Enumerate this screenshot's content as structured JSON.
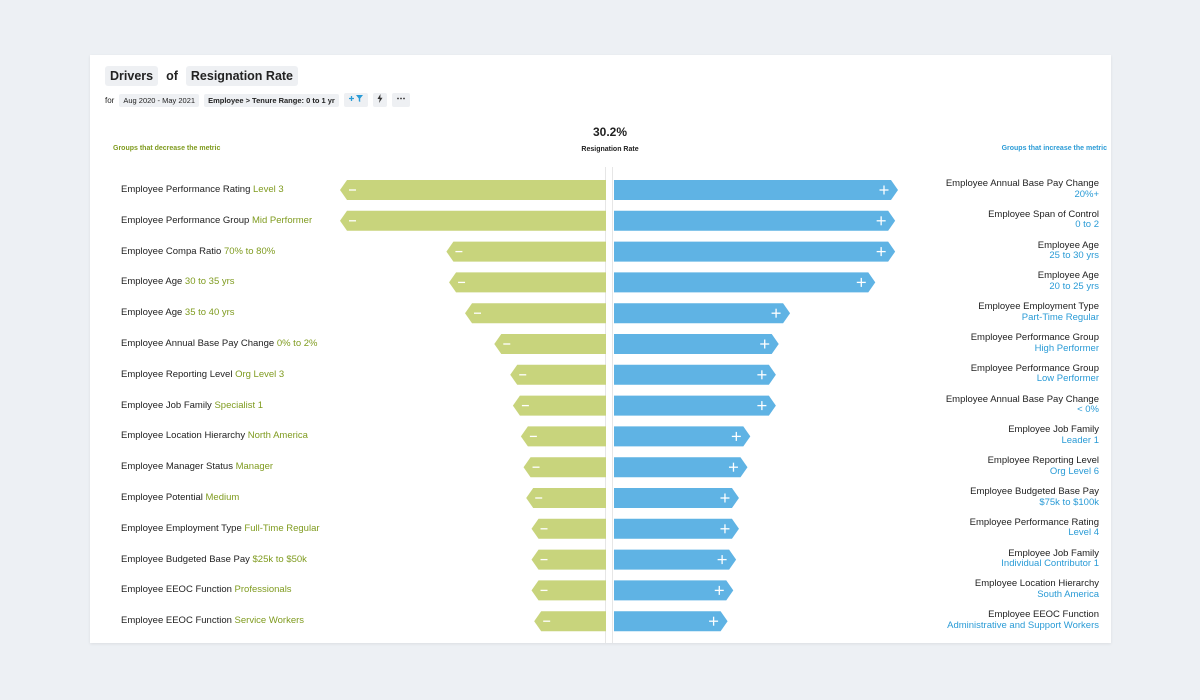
{
  "header": {
    "prefix": "Drivers",
    "connector": "of",
    "metric": "Resignation Rate"
  },
  "filters": {
    "for_label": "for",
    "date_range": "Aug 2020 - May 2021",
    "tenure_filter": "Employee > Tenure Range: 0 to 1 yr",
    "add_filter_icon": "filter-add-icon",
    "insight_icon": "lightning-icon",
    "more_icon": "more-icon"
  },
  "colors": {
    "decrease": "#c8d47c",
    "increase": "#5fb3e4",
    "decrease_text": "#7f9b1f",
    "increase_text": "#2a9bd6"
  },
  "chart_data": {
    "type": "bar",
    "title": "Drivers of Resignation Rate",
    "overall_value": "30.2%",
    "overall_label": "Resignation Rate",
    "left_heading": "Groups that decrease the metric",
    "right_heading": "Groups that increase the metric",
    "scale_max": 100,
    "decrease": [
      {
        "category": "Employee Performance Rating",
        "group": "Level 3",
        "magnitude": 100
      },
      {
        "category": "Employee Performance Group",
        "group": "Mid Performer",
        "magnitude": 100
      },
      {
        "category": "Employee Compa Ratio",
        "group": "70% to 80%",
        "magnitude": 60
      },
      {
        "category": "Employee Age",
        "group": "30 to 35 yrs",
        "magnitude": 59
      },
      {
        "category": "Employee Age",
        "group": "35 to 40 yrs",
        "magnitude": 53
      },
      {
        "category": "Employee Annual Base Pay Change",
        "group": "0% to 2%",
        "magnitude": 42
      },
      {
        "category": "Employee Reporting Level",
        "group": "Org Level 3",
        "magnitude": 36
      },
      {
        "category": "Employee Job Family",
        "group": "Specialist 1",
        "magnitude": 35
      },
      {
        "category": "Employee Location Hierarchy",
        "group": "North America",
        "magnitude": 32
      },
      {
        "category": "Employee Manager Status",
        "group": "Manager",
        "magnitude": 31
      },
      {
        "category": "Employee Potential",
        "group": "Medium",
        "magnitude": 30
      },
      {
        "category": "Employee Employment Type",
        "group": "Full-Time Regular",
        "magnitude": 28
      },
      {
        "category": "Employee Budgeted Base Pay",
        "group": "$25k to $50k",
        "magnitude": 28
      },
      {
        "category": "Employee EEOC Function",
        "group": "Professionals",
        "magnitude": 28
      },
      {
        "category": "Employee EEOC Function",
        "group": "Service Workers",
        "magnitude": 27
      }
    ],
    "increase": [
      {
        "category": "Employee Annual Base Pay Change",
        "group": "20%+",
        "magnitude": 100
      },
      {
        "category": "Employee Span of Control",
        "group": "0 to 2",
        "magnitude": 99
      },
      {
        "category": "Employee Age",
        "group": "25 to 30 yrs",
        "magnitude": 99
      },
      {
        "category": "Employee Age",
        "group": "20 to 25 yrs",
        "magnitude": 92
      },
      {
        "category": "Employee Employment Type",
        "group": "Part-Time Regular",
        "magnitude": 62
      },
      {
        "category": "Employee Performance Group",
        "group": "High Performer",
        "magnitude": 58
      },
      {
        "category": "Employee Performance Group",
        "group": "Low Performer",
        "magnitude": 57
      },
      {
        "category": "Employee Annual Base Pay Change",
        "group": "< 0%",
        "magnitude": 57
      },
      {
        "category": "Employee Job Family",
        "group": "Leader 1",
        "magnitude": 48
      },
      {
        "category": "Employee Reporting Level",
        "group": "Org Level 6",
        "magnitude": 47
      },
      {
        "category": "Employee Budgeted Base Pay",
        "group": "$75k to $100k",
        "magnitude": 44
      },
      {
        "category": "Employee Performance Rating",
        "group": "Level 4",
        "magnitude": 44
      },
      {
        "category": "Employee Job Family",
        "group": "Individual Contributor 1",
        "magnitude": 43
      },
      {
        "category": "Employee Location Hierarchy",
        "group": "South America",
        "magnitude": 42
      },
      {
        "category": "Employee EEOC Function",
        "group": "Administrative and Support Workers",
        "magnitude": 40
      }
    ]
  }
}
